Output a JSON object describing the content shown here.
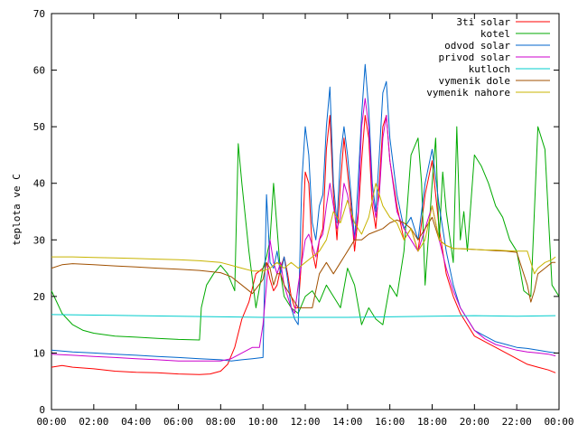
{
  "chart_data": {
    "type": "line",
    "title": "",
    "xlabel": "",
    "ylabel": "teplota ve C",
    "xlim": [
      "00:00",
      "24:00"
    ],
    "ylim": [
      0,
      70
    ],
    "x_ticks": [
      "00:00",
      "02:00",
      "04:00",
      "06:00",
      "08:00",
      "10:00",
      "12:00",
      "14:00",
      "16:00",
      "18:00",
      "20:00",
      "22:00",
      "00:00"
    ],
    "y_ticks": [
      0,
      10,
      20,
      30,
      40,
      50,
      60,
      70
    ],
    "legend_position": "top-right",
    "grid": false,
    "series": [
      {
        "name": "3ti solar",
        "color": "#ff0000",
        "x": [
          "00:00",
          "00:30",
          "01:00",
          "02:00",
          "03:00",
          "04:00",
          "05:00",
          "06:00",
          "07:00",
          "07:30",
          "08:00",
          "08:20",
          "08:40",
          "09:00",
          "09:20",
          "09:40",
          "10:00",
          "10:10",
          "10:20",
          "10:30",
          "10:40",
          "10:50",
          "11:00",
          "11:10",
          "11:20",
          "11:30",
          "11:40",
          "11:50",
          "12:00",
          "12:10",
          "12:20",
          "12:30",
          "12:40",
          "12:50",
          "13:00",
          "13:10",
          "13:20",
          "13:30",
          "13:40",
          "13:50",
          "14:00",
          "14:10",
          "14:20",
          "14:30",
          "14:40",
          "14:50",
          "15:00",
          "15:10",
          "15:20",
          "15:30",
          "15:40",
          "15:50",
          "16:00",
          "16:20",
          "16:40",
          "17:00",
          "17:20",
          "17:40",
          "18:00",
          "18:20",
          "18:40",
          "19:00",
          "19:20",
          "19:40",
          "20:00",
          "20:30",
          "21:00",
          "21:30",
          "22:00",
          "22:30",
          "23:00",
          "23:30",
          "23:50"
        ],
        "y": [
          7.5,
          7.8,
          7.5,
          7.2,
          6.8,
          6.6,
          6.5,
          6.3,
          6.2,
          6.3,
          6.8,
          8,
          11,
          16,
          19,
          24,
          25,
          26,
          23,
          21,
          22,
          25,
          27,
          24,
          20,
          18,
          18,
          27,
          42,
          40,
          28,
          25,
          30,
          32,
          46,
          52,
          38,
          30,
          40,
          48,
          42,
          36,
          28,
          34,
          44,
          52,
          48,
          36,
          32,
          40,
          50,
          52,
          44,
          36,
          30,
          32,
          28,
          38,
          44,
          32,
          24,
          20,
          17,
          15,
          13,
          12,
          11,
          10,
          9,
          8,
          7.5,
          7,
          6.5
        ]
      },
      {
        "name": "kotel",
        "color": "#00aa00",
        "x": [
          "00:00",
          "00:15",
          "00:30",
          "01:00",
          "01:30",
          "02:00",
          "03:00",
          "04:00",
          "05:00",
          "06:00",
          "07:00",
          "07:05",
          "07:20",
          "07:40",
          "08:00",
          "08:20",
          "08:40",
          "08:50",
          "09:00",
          "09:20",
          "09:40",
          "10:00",
          "10:10",
          "10:20",
          "10:30",
          "10:40",
          "10:50",
          "11:00",
          "11:20",
          "11:40",
          "12:00",
          "12:20",
          "12:40",
          "13:00",
          "13:20",
          "13:40",
          "14:00",
          "14:20",
          "14:40",
          "15:00",
          "15:20",
          "15:40",
          "16:00",
          "16:20",
          "16:40",
          "17:00",
          "17:20",
          "17:30",
          "17:40",
          "18:00",
          "18:10",
          "18:20",
          "18:30",
          "18:40",
          "19:00",
          "19:10",
          "19:20",
          "19:30",
          "19:40",
          "20:00",
          "20:20",
          "20:40",
          "21:00",
          "21:20",
          "21:40",
          "22:00",
          "22:20",
          "22:40",
          "23:00",
          "23:20",
          "23:40",
          "24:00"
        ],
        "y": [
          21,
          19,
          17,
          15,
          14,
          13.5,
          13,
          12.8,
          12.6,
          12.4,
          12.3,
          18,
          22,
          24,
          25.5,
          24,
          21,
          47,
          40,
          28,
          18,
          25,
          27,
          30,
          40,
          32,
          24,
          20,
          18,
          17,
          20,
          21,
          19,
          22,
          20,
          18,
          25,
          22,
          15,
          18,
          16,
          15,
          22,
          20,
          28,
          45,
          48,
          40,
          22,
          40,
          48,
          30,
          42,
          35,
          26,
          50,
          30,
          35,
          28,
          45,
          43,
          40,
          36,
          34,
          30,
          28,
          21,
          20,
          50,
          46,
          22,
          20
        ]
      },
      {
        "name": "odvod solar",
        "color": "#0066cc",
        "x": [
          "00:00",
          "01:00",
          "02:00",
          "03:00",
          "04:00",
          "05:00",
          "06:00",
          "07:00",
          "08:00",
          "08:30",
          "09:00",
          "09:30",
          "10:00",
          "10:10",
          "10:20",
          "10:30",
          "10:40",
          "10:50",
          "11:00",
          "11:10",
          "11:20",
          "11:30",
          "11:40",
          "11:50",
          "12:00",
          "12:10",
          "12:20",
          "12:30",
          "12:40",
          "12:50",
          "13:00",
          "13:10",
          "13:20",
          "13:30",
          "13:40",
          "13:50",
          "14:00",
          "14:10",
          "14:20",
          "14:30",
          "14:40",
          "14:50",
          "15:00",
          "15:10",
          "15:20",
          "15:30",
          "15:40",
          "15:50",
          "16:00",
          "16:20",
          "16:40",
          "17:00",
          "17:20",
          "17:40",
          "18:00",
          "18:20",
          "18:40",
          "19:00",
          "19:20",
          "19:40",
          "20:00",
          "20:30",
          "21:00",
          "21:30",
          "22:00",
          "22:30",
          "23:00",
          "23:30",
          "23:50"
        ],
        "y": [
          10.5,
          10.2,
          10,
          9.8,
          9.6,
          9.4,
          9.2,
          9,
          8.8,
          8.6,
          8.8,
          9,
          9.2,
          38,
          26,
          25,
          28,
          24,
          27,
          23,
          18,
          16,
          15,
          40,
          50,
          45,
          33,
          30,
          36,
          38,
          50,
          57,
          40,
          33,
          45,
          50,
          45,
          38,
          30,
          40,
          52,
          61,
          53,
          40,
          35,
          45,
          56,
          58,
          48,
          38,
          32,
          34,
          30,
          40,
          46,
          36,
          28,
          22,
          18,
          16,
          14,
          13,
          12,
          11.5,
          11,
          10.8,
          10.5,
          10.2,
          10
        ]
      },
      {
        "name": "privod solar",
        "color": "#cc00cc",
        "x": [
          "00:00",
          "01:00",
          "02:00",
          "03:00",
          "04:00",
          "05:00",
          "06:00",
          "07:00",
          "08:00",
          "08:30",
          "09:00",
          "09:30",
          "09:50",
          "10:00",
          "10:10",
          "10:20",
          "10:30",
          "10:40",
          "10:50",
          "11:00",
          "11:10",
          "11:20",
          "11:30",
          "11:40",
          "11:50",
          "12:00",
          "12:10",
          "12:20",
          "12:30",
          "12:40",
          "12:50",
          "13:00",
          "13:10",
          "13:20",
          "13:30",
          "13:40",
          "13:50",
          "14:00",
          "14:10",
          "14:20",
          "14:30",
          "14:40",
          "14:50",
          "15:00",
          "15:10",
          "15:20",
          "15:30",
          "15:40",
          "15:50",
          "16:00",
          "16:20",
          "16:40",
          "17:00",
          "17:20",
          "17:40",
          "18:00",
          "18:20",
          "18:40",
          "19:00",
          "19:20",
          "19:40",
          "20:00",
          "20:30",
          "21:00",
          "21:30",
          "22:00",
          "22:30",
          "23:00",
          "23:30",
          "23:50"
        ],
        "y": [
          9.8,
          9.6,
          9.4,
          9.2,
          9,
          8.8,
          8.6,
          8.6,
          8.6,
          9,
          10,
          11,
          11,
          15,
          22,
          30,
          26,
          24,
          26,
          22,
          20,
          18,
          17,
          22,
          26,
          30,
          31,
          29,
          27,
          30,
          31,
          36,
          40,
          36,
          32,
          34,
          40,
          38,
          34,
          30,
          35,
          50,
          55,
          50,
          38,
          34,
          38,
          48,
          52,
          44,
          35,
          32,
          30,
          28,
          32,
          36,
          30,
          25,
          21,
          18,
          16,
          14,
          12.5,
          11.5,
          11,
          10.5,
          10.2,
          10,
          9.8,
          9.5
        ]
      },
      {
        "name": "kutloch",
        "color": "#00cccc",
        "x": [
          "00:00",
          "02:00",
          "04:00",
          "06:00",
          "08:00",
          "10:00",
          "12:00",
          "14:00",
          "16:00",
          "18:00",
          "20:00",
          "22:00",
          "23:50"
        ],
        "y": [
          16.8,
          16.7,
          16.6,
          16.5,
          16.4,
          16.3,
          16.3,
          16.3,
          16.4,
          16.5,
          16.6,
          16.5,
          16.6
        ]
      },
      {
        "name": "vymenik dole",
        "color": "#a05000",
        "x": [
          "00:00",
          "00:30",
          "01:00",
          "02:00",
          "03:00",
          "04:00",
          "05:00",
          "06:00",
          "07:00",
          "08:00",
          "08:30",
          "09:00",
          "09:30",
          "10:00",
          "10:10",
          "10:20",
          "10:30",
          "10:40",
          "10:50",
          "11:00",
          "11:20",
          "11:40",
          "12:00",
          "12:20",
          "12:40",
          "13:00",
          "13:20",
          "13:40",
          "14:00",
          "14:20",
          "14:40",
          "15:00",
          "15:20",
          "15:40",
          "16:00",
          "16:20",
          "16:40",
          "17:00",
          "17:20",
          "17:40",
          "18:00",
          "18:20",
          "18:40",
          "19:00",
          "19:30",
          "20:00",
          "20:30",
          "21:00",
          "21:30",
          "22:00",
          "22:30",
          "22:40",
          "22:50",
          "23:00",
          "23:20",
          "23:40",
          "23:50"
        ],
        "y": [
          25,
          25.6,
          25.8,
          25.6,
          25.4,
          25.2,
          25,
          24.8,
          24.6,
          24.2,
          23.5,
          22,
          20.5,
          23,
          26,
          25,
          22,
          24,
          24,
          22,
          20,
          18,
          18,
          18,
          24,
          26,
          24,
          26,
          28,
          30,
          30,
          31,
          31.5,
          32,
          33,
          33.5,
          33,
          32,
          30,
          32,
          34,
          30,
          29,
          28.5,
          28.4,
          28.3,
          28.2,
          28.1,
          28,
          27.8,
          22,
          19,
          21,
          24,
          25,
          26,
          26
        ]
      },
      {
        "name": "vymenik nahore",
        "color": "#c8b400",
        "x": [
          "00:00",
          "01:00",
          "02:00",
          "03:00",
          "04:00",
          "05:00",
          "06:00",
          "07:00",
          "08:00",
          "09:00",
          "09:30",
          "10:00",
          "10:20",
          "10:40",
          "11:00",
          "11:20",
          "11:40",
          "12:00",
          "12:20",
          "12:40",
          "13:00",
          "13:20",
          "13:40",
          "14:00",
          "14:20",
          "14:40",
          "15:00",
          "15:20",
          "15:40",
          "16:00",
          "16:20",
          "16:40",
          "17:00",
          "17:20",
          "17:40",
          "18:00",
          "18:20",
          "18:40",
          "19:00",
          "19:30",
          "20:00",
          "20:30",
          "21:00",
          "21:30",
          "22:00",
          "22:30",
          "22:40",
          "22:50",
          "23:00",
          "23:20",
          "23:40",
          "23:50"
        ],
        "y": [
          27,
          27,
          26.9,
          26.8,
          26.7,
          26.6,
          26.5,
          26.3,
          26,
          25,
          24.5,
          24.5,
          25,
          26,
          25,
          26,
          25,
          26,
          27,
          28,
          30,
          35,
          33,
          37,
          33,
          31,
          34,
          40,
          36,
          34,
          33,
          30,
          32,
          28,
          30,
          36,
          30,
          29,
          28.5,
          28.4,
          28.3,
          28.2,
          28.2,
          28.1,
          28,
          28,
          26,
          24,
          25,
          26,
          26.5,
          27
        ]
      }
    ]
  }
}
